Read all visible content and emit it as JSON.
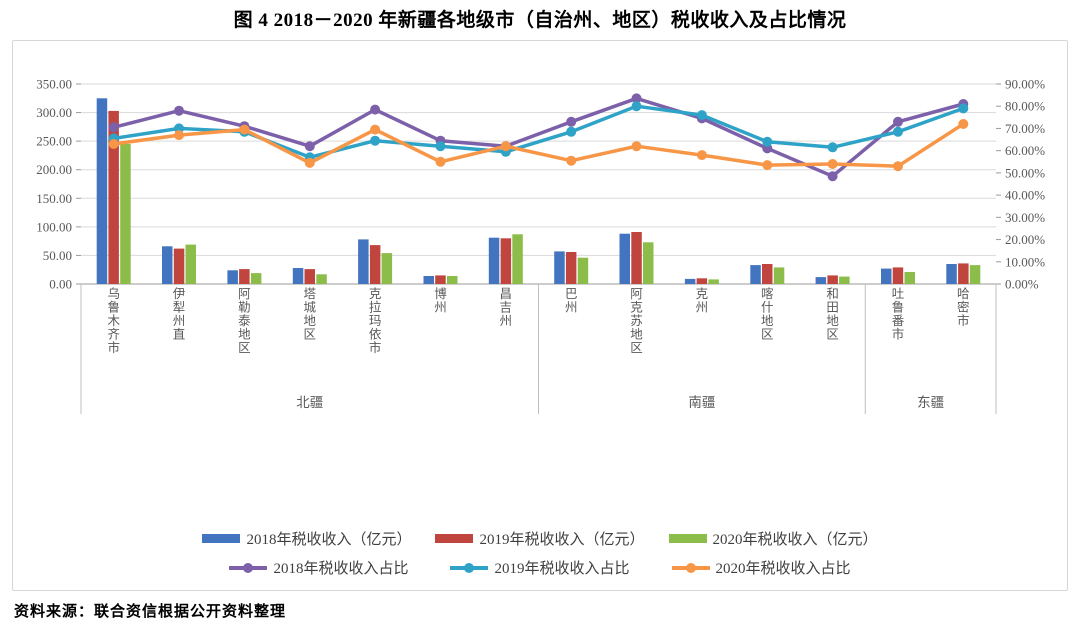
{
  "page": {
    "title": "图 4 2018－2020 年新疆各地级市（自治州、地区）税收收入及占比情况",
    "source_note": "资料来源：联合资信根据公开资料整理"
  },
  "chart_data": {
    "type": "combo bar + line, dual axis",
    "title": "图 4 2018－2020 年新疆各地级市（自治州、地区）税收收入及占比情况",
    "categories": [
      "乌鲁木齐市",
      "伊犁州直",
      "阿勒泰地区",
      "塔城地区",
      "克拉玛依市",
      "博州",
      "昌吉州",
      "巴州",
      "阿克苏地区",
      "克州",
      "喀什地区",
      "和田地区",
      "吐鲁番市",
      "哈密市"
    ],
    "category_groups": [
      {
        "label": "北疆",
        "count": 7
      },
      {
        "label": "南疆",
        "count": 5
      },
      {
        "label": "东疆",
        "count": 2
      }
    ],
    "bar_series": [
      {
        "name": "2018年税收收入（亿元）",
        "color": "#4374BF",
        "axis": "left",
        "values": [
          325,
          66,
          24,
          28,
          78,
          14,
          81,
          57,
          88,
          9,
          33,
          12,
          27,
          35
        ]
      },
      {
        "name": "2019年税收收入（亿元）",
        "color": "#C0453E",
        "axis": "left",
        "values": [
          303,
          62,
          26,
          26,
          68,
          15,
          80,
          56,
          91,
          10,
          35,
          15,
          29,
          36
        ]
      },
      {
        "name": "2020年税收收入（亿元）",
        "color": "#8CBD4B",
        "axis": "left",
        "values": [
          245,
          69,
          19,
          17,
          54,
          14,
          87,
          46,
          73,
          8,
          29,
          13,
          21,
          33
        ]
      }
    ],
    "line_series": [
      {
        "name": "2018年税收收入占比",
        "color": "#7C60A9",
        "axis": "right",
        "values": [
          70.5,
          78,
          71,
          62,
          78.5,
          64.5,
          62,
          73,
          83.5,
          74.5,
          61,
          48.5,
          73,
          81
        ]
      },
      {
        "name": "2019年税收收入占比",
        "color": "#2FA3C7",
        "axis": "right",
        "values": [
          65.5,
          70,
          68.5,
          57,
          64.5,
          62,
          59.5,
          68.5,
          80,
          76,
          64,
          61.5,
          68.5,
          79
        ]
      },
      {
        "name": "2020年税收收入占比",
        "color": "#F79646",
        "axis": "right",
        "values": [
          63,
          67,
          69.5,
          54.5,
          69.5,
          55,
          62,
          55.5,
          62,
          58,
          53.5,
          54,
          53,
          72
        ]
      }
    ],
    "left_axis": {
      "min": 0,
      "max": 350,
      "step": 50,
      "labels": [
        "350.00",
        "300.00",
        "250.00",
        "200.00",
        "150.00",
        "100.00",
        "50.00",
        "0.00"
      ]
    },
    "right_axis": {
      "min": 0,
      "max": 90,
      "step": 10,
      "labels": [
        "90.00%",
        "80.00%",
        "70.00%",
        "60.00%",
        "50.00%",
        "40.00%",
        "30.00%",
        "20.00%",
        "10.00%",
        "0.00%"
      ]
    },
    "grid": true,
    "legend_position": "bottom"
  }
}
